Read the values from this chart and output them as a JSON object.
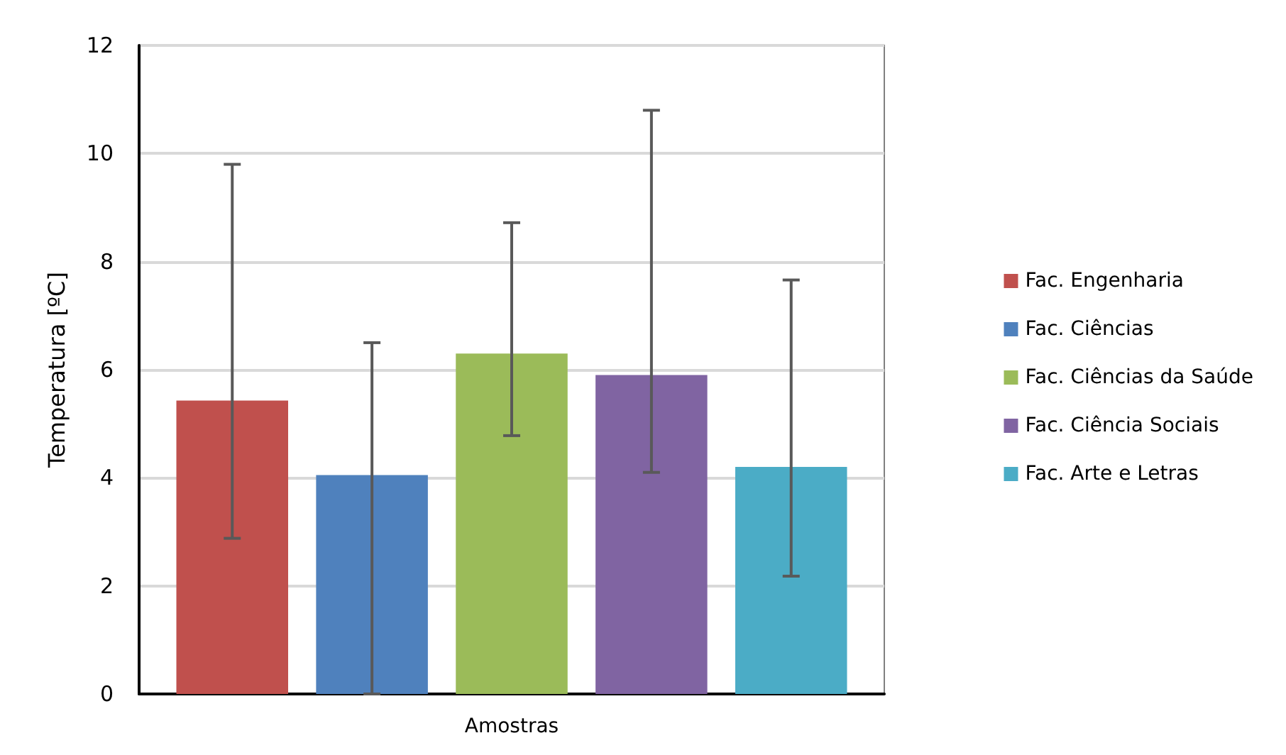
{
  "chart_data": {
    "type": "bar",
    "xlabel": "Amostras",
    "ylabel": "Temperatura [ºC]",
    "categories": [
      null
    ],
    "series": [
      {
        "name": "Fac. Engenharia",
        "color": "#c0504d",
        "values": [
          5.43
        ],
        "errors": [
          [
            2.88,
            9.8
          ]
        ]
      },
      {
        "name": "Fac. Ciências",
        "color": "#4f81bd",
        "values": [
          4.05
        ],
        "errors": [
          [
            0,
            6.5
          ]
        ]
      },
      {
        "name": "Fac. Ciências da Saúde",
        "color": "#9bbb59",
        "values": [
          6.3
        ],
        "errors": [
          [
            4.78,
            8.72
          ]
        ]
      },
      {
        "name": "Fac. Ciência Sociais",
        "color": "#8064a2",
        "values": [
          5.9
        ],
        "errors": [
          [
            4.1,
            10.8
          ]
        ]
      },
      {
        "name": "Fac. Arte e Letras",
        "color": "#4bacc6",
        "values": [
          4.2
        ],
        "errors": [
          [
            2.18,
            7.66
          ]
        ]
      }
    ],
    "ylim": [
      0,
      12
    ],
    "yticks": [
      0,
      2,
      4,
      6,
      8,
      10,
      12
    ],
    "grid": "y",
    "legend": "right"
  }
}
